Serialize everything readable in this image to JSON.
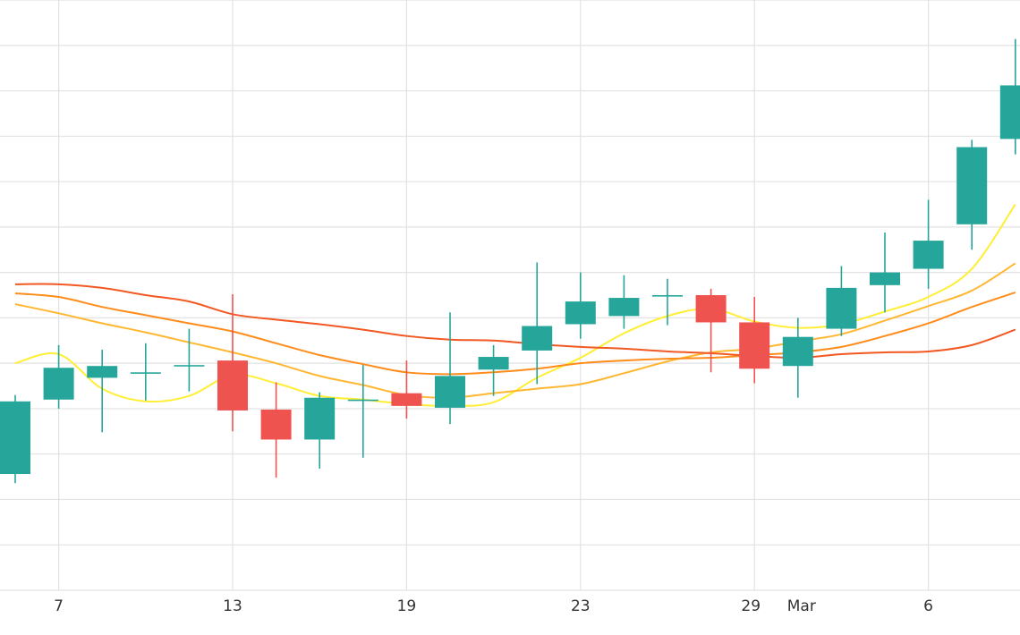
{
  "chart_data": {
    "type": "candlestick",
    "title": "",
    "xlabel": "",
    "ylabel": "",
    "grid": true,
    "ylim": [
      0,
      650
    ],
    "x_ticks": [
      {
        "label": "7",
        "x": 1
      },
      {
        "label": "13",
        "x": 5
      },
      {
        "label": "19",
        "x": 9
      },
      {
        "label": "23",
        "x": 13
      },
      {
        "label": "29",
        "x": 17
      },
      {
        "label": "Mar",
        "x": 18
      },
      {
        "label": "6",
        "x": 21
      }
    ],
    "candles": [
      {
        "x": 0,
        "open": 128,
        "high": 215,
        "low": 118,
        "close": 208
      },
      {
        "x": 1,
        "open": 210,
        "high": 270,
        "low": 200,
        "close": 245
      },
      {
        "x": 2,
        "open": 234,
        "high": 265,
        "low": 174,
        "close": 247
      },
      {
        "x": 3,
        "open": 240,
        "high": 272,
        "low": 209,
        "close": 240
      },
      {
        "x": 4,
        "open": 248,
        "high": 288,
        "low": 219,
        "close": 248
      },
      {
        "x": 5,
        "open": 253,
        "high": 326,
        "low": 175,
        "close": 198
      },
      {
        "x": 6,
        "open": 199,
        "high": 229,
        "low": 124,
        "close": 166
      },
      {
        "x": 7,
        "open": 166,
        "high": 218,
        "low": 134,
        "close": 212
      },
      {
        "x": 8,
        "open": 210,
        "high": 248,
        "low": 146,
        "close": 210
      },
      {
        "x": 9,
        "open": 217,
        "high": 253,
        "low": 189,
        "close": 203
      },
      {
        "x": 10,
        "open": 201,
        "high": 306,
        "low": 183,
        "close": 236
      },
      {
        "x": 11,
        "open": 243,
        "high": 270,
        "low": 214,
        "close": 257
      },
      {
        "x": 12,
        "open": 264,
        "high": 361,
        "low": 227,
        "close": 291
      },
      {
        "x": 13,
        "open": 293,
        "high": 350,
        "low": 277,
        "close": 318
      },
      {
        "x": 14,
        "open": 302,
        "high": 347,
        "low": 288,
        "close": 322
      },
      {
        "x": 15,
        "open": 325,
        "high": 343,
        "low": 292,
        "close": 325
      },
      {
        "x": 16,
        "open": 325,
        "high": 332,
        "low": 240,
        "close": 295
      },
      {
        "x": 17,
        "open": 295,
        "high": 323,
        "low": 228,
        "close": 244
      },
      {
        "x": 18,
        "open": 247,
        "high": 300,
        "low": 212,
        "close": 279
      },
      {
        "x": 19,
        "open": 288,
        "high": 357,
        "low": 280,
        "close": 333
      },
      {
        "x": 20,
        "open": 336,
        "high": 394,
        "low": 306,
        "close": 350
      },
      {
        "x": 21,
        "open": 354,
        "high": 430,
        "low": 332,
        "close": 385
      },
      {
        "x": 22,
        "open": 403,
        "high": 496,
        "low": 375,
        "close": 488
      },
      {
        "x": 23,
        "open": 497,
        "high": 607,
        "low": 480,
        "close": 556
      }
    ],
    "moving_averages": [
      {
        "color": "#ffee33",
        "values": [
          250,
          260,
          222,
          208,
          214,
          237,
          228,
          214,
          210,
          205,
          203,
          207,
          234,
          256,
          283,
          302,
          310,
          296,
          289,
          293,
          307,
          323,
          354,
          425
        ]
      },
      {
        "color": "#ffb732",
        "values": [
          315,
          305,
          294,
          284,
          273,
          262,
          250,
          236,
          226,
          215,
          212,
          217,
          222,
          227,
          239,
          252,
          262,
          266,
          274,
          282,
          297,
          313,
          330,
          360
        ]
      },
      {
        "color": "#ff8c1a",
        "values": [
          327,
          323,
          312,
          303,
          294,
          285,
          272,
          259,
          249,
          240,
          238,
          240,
          244,
          250,
          253,
          255,
          256,
          259,
          262,
          268,
          280,
          294,
          312,
          328
        ]
      },
      {
        "color": "#f25822",
        "values": [
          337,
          337,
          333,
          325,
          318,
          304,
          298,
          293,
          287,
          280,
          276,
          275,
          271,
          268,
          266,
          263,
          261,
          258,
          256,
          260,
          262,
          263,
          270,
          287
        ]
      }
    ],
    "colors": {
      "up": "#26a69a",
      "down": "#ef5350",
      "grid": "#e2e2e2"
    }
  }
}
